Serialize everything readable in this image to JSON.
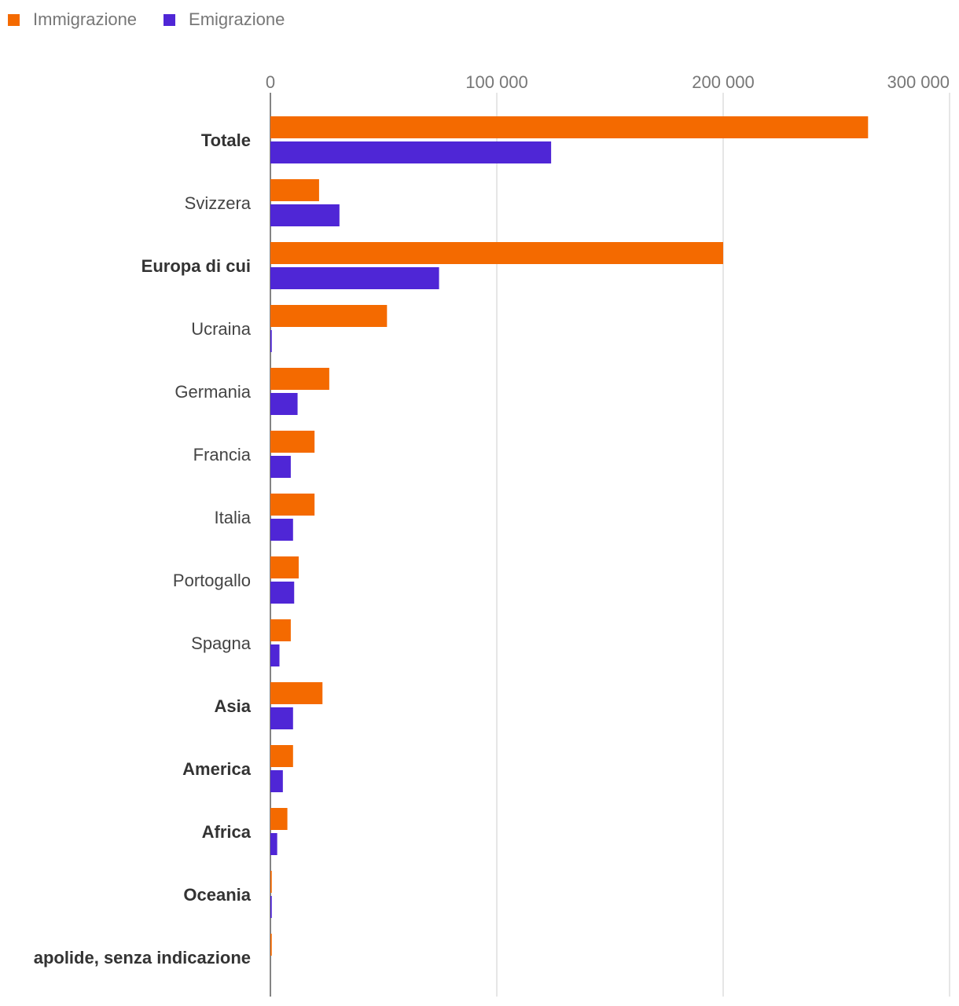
{
  "chart_data": {
    "type": "bar",
    "orientation": "horizontal",
    "categories": [
      "Totale",
      "Svizzera",
      "Europa di cui",
      "Ucraina",
      "Germania",
      "Francia",
      "Italia",
      "Portogallo",
      "Spagna",
      "Asia",
      "America",
      "Africa",
      "Oceania",
      "apolide, senza indicazione"
    ],
    "bold_categories": [
      "Totale",
      "Europa di cui",
      "Asia",
      "America",
      "Africa",
      "Oceania",
      "apolide, senza indicazione"
    ],
    "series": [
      {
        "name": "Immigrazione",
        "color": "#f46a00",
        "values": [
          264000,
          21500,
          200000,
          51500,
          26000,
          19500,
          19500,
          12500,
          9000,
          23000,
          10000,
          7500,
          600,
          600
        ]
      },
      {
        "name": "Emigrazione",
        "color": "#4f26d6",
        "values": [
          124000,
          30500,
          74500,
          600,
          12000,
          9000,
          10000,
          10500,
          4000,
          10000,
          5500,
          3000,
          600,
          0
        ]
      }
    ],
    "x_ticks": [
      0,
      100000,
      200000,
      300000
    ],
    "x_tick_labels": [
      "0",
      "100 000",
      "200 000",
      "300 000"
    ],
    "xlim": [
      0,
      302000
    ],
    "legend_position": "top-left",
    "grid": true
  }
}
